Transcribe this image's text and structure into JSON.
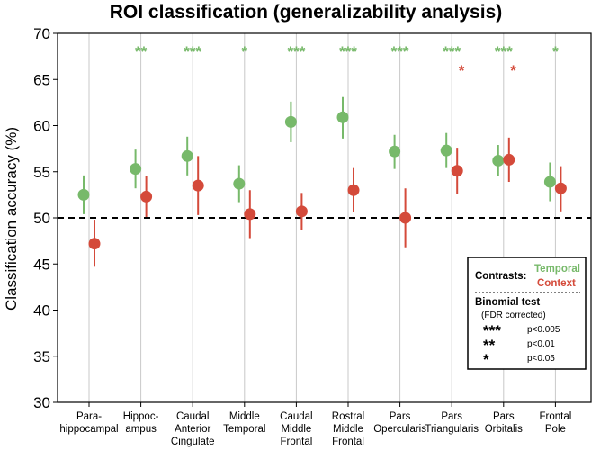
{
  "chart_data": {
    "type": "scatter",
    "title": "ROI classification (generalizability analysis)",
    "xlabel": "",
    "ylabel": "Classification accuracy (%)",
    "ylim": [
      30,
      70
    ],
    "yticks": [
      30,
      35,
      40,
      45,
      50,
      55,
      60,
      65,
      70
    ],
    "chance_level": 50,
    "grid": "vertical",
    "categories": [
      [
        "Para-",
        "hippocampal"
      ],
      [
        "Hippoc-",
        "ampus"
      ],
      [
        "Caudal",
        "Anterior",
        "Cingulate"
      ],
      [
        "Middle",
        "Temporal"
      ],
      [
        "Caudal",
        "Middle",
        "Frontal"
      ],
      [
        "Rostral",
        "Middle",
        "Frontal"
      ],
      [
        "Pars",
        "Opercularis"
      ],
      [
        "Pars",
        "Triangularis"
      ],
      [
        "Pars",
        "Orbitalis"
      ],
      [
        "Frontal",
        "Pole"
      ]
    ],
    "series": [
      {
        "name": "Temporal",
        "color": "#77b96a",
        "values": [
          52.5,
          55.3,
          56.7,
          53.7,
          60.4,
          60.9,
          57.2,
          57.3,
          56.2,
          53.9
        ],
        "err_low": [
          50.4,
          53.2,
          54.6,
          51.7,
          58.2,
          58.6,
          55.3,
          55.4,
          54.5,
          51.8
        ],
        "err_high": [
          54.6,
          57.4,
          58.8,
          55.7,
          62.6,
          63.1,
          59.0,
          59.2,
          57.9,
          56.0
        ],
        "significance": [
          "",
          "**",
          "***",
          "*",
          "***",
          "***",
          "***",
          "***",
          "***",
          "*"
        ]
      },
      {
        "name": "Context",
        "color": "#d44a3a",
        "values": [
          47.2,
          52.3,
          53.5,
          50.4,
          50.7,
          53.0,
          50.0,
          55.1,
          56.3,
          53.2
        ],
        "err_low": [
          44.7,
          50.1,
          50.3,
          47.8,
          48.7,
          50.6,
          46.8,
          52.6,
          53.9,
          50.7
        ],
        "err_high": [
          49.8,
          54.5,
          56.7,
          53.0,
          52.7,
          55.4,
          53.2,
          57.6,
          58.7,
          55.6
        ],
        "significance": [
          "",
          "",
          "",
          "",
          "",
          "",
          "",
          "*",
          "*",
          ""
        ]
      }
    ],
    "legend": {
      "position": "bottom-right",
      "contrasts_label": "Contrasts:",
      "test_title": "Binomial test",
      "test_subtitle": "(FDR corrected)",
      "rows": [
        {
          "stars": "***",
          "label": "p<0.005"
        },
        {
          "stars": "**",
          "label": "p<0.01"
        },
        {
          "stars": "*",
          "label": "p<0.05"
        }
      ]
    }
  }
}
